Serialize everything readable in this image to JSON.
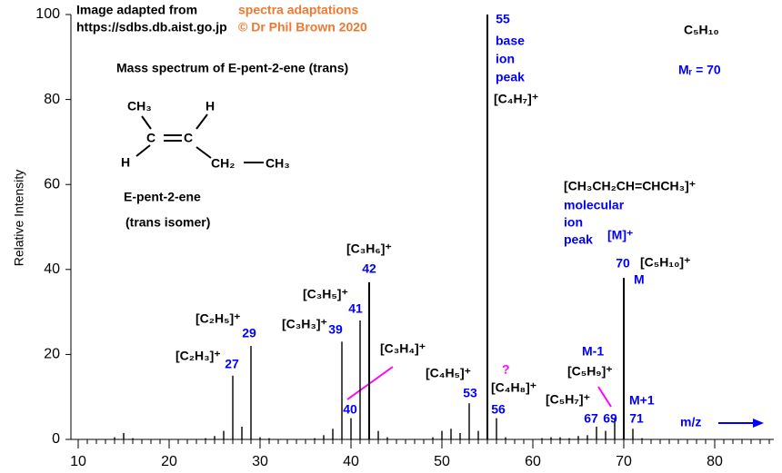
{
  "chart_data": {
    "type": "bar",
    "title": "Mass spectrum of E-pent-2-ene (trans)",
    "y_label": "Relative Intensity",
    "x_label": "m/z",
    "color": "#000000",
    "label_color": "#0000ff",
    "x": [
      14,
      15,
      16,
      24,
      25,
      26,
      27,
      28,
      29,
      30,
      31,
      36,
      37,
      38,
      39,
      40,
      41,
      42,
      43,
      44,
      49,
      50,
      51,
      52,
      53,
      54,
      55,
      56,
      57,
      61,
      62,
      63,
      64,
      65,
      66,
      67,
      68,
      69,
      70,
      71,
      72
    ],
    "values": [
      0.5,
      1.5,
      0.3,
      0.3,
      0.8,
      2,
      15,
      3,
      22,
      0.5,
      0.3,
      0.3,
      1,
      2.5,
      23,
      5,
      28,
      37,
      2,
      0.5,
      0.5,
      2,
      2.5,
      1.5,
      8.5,
      2,
      100,
      5,
      0.5,
      0.3,
      0.5,
      0.5,
      0.3,
      0.8,
      1,
      3,
      2,
      5,
      38,
      2.5,
      0.3
    ],
    "xlim": [
      9.2,
      86.5
    ],
    "xticks": [
      10,
      20,
      30,
      40,
      50,
      60,
      70,
      80
    ],
    "ylim": [
      0,
      100
    ],
    "yticks": [
      0,
      20,
      40,
      60,
      80,
      100
    ],
    "annotations": [
      {
        "text": "Image adapted from",
        "color": "#000000"
      },
      {
        "text": "https://sdbs.db.aist.go.jp",
        "color": "#000000"
      },
      {
        "text": "spectra adaptations",
        "color": "#f07830"
      },
      {
        "text": "© Dr Phil Brown 2020",
        "color": "#f07830"
      },
      {
        "text": "C₅H₁₀",
        "color": "#000000"
      },
      {
        "text": "Mᵣ = 70",
        "color": "#0000ff"
      },
      {
        "text": "base",
        "color": "#0000ff"
      },
      {
        "text": "ion",
        "color": "#0000ff"
      },
      {
        "text": "peak",
        "color": "#0000ff"
      },
      {
        "text": "[C₄H₇]⁺",
        "color": "#000000"
      },
      {
        "text": "[CH₃CH₂CH=CHCH₃]⁺",
        "color": "#000000"
      },
      {
        "text": "molecular",
        "color": "#0000ff"
      },
      {
        "text": "ion",
        "color": "#0000ff"
      },
      {
        "text": "peak",
        "color": "#0000ff"
      },
      {
        "text": "[M]⁺",
        "color": "#0000ff"
      },
      {
        "text": "[C₅H₁₀]⁺",
        "color": "#000000"
      },
      {
        "text": "M",
        "color": "#0000ff"
      },
      {
        "text": "[C₃H₆]⁺",
        "color": "#000000"
      },
      {
        "text": "[C₃H₅]⁺",
        "color": "#000000"
      },
      {
        "text": "[C₃H₃]⁺",
        "color": "#000000"
      },
      {
        "text": "[C₂H₅]⁺",
        "color": "#000000"
      },
      {
        "text": "[C₂H₃]⁺",
        "color": "#000000"
      },
      {
        "text": "[C₃H₄]⁺",
        "color": "#000000"
      },
      {
        "text": "[C₄H₅]⁺",
        "color": "#000000"
      },
      {
        "text": "?",
        "color": "#ff00ff"
      },
      {
        "text": "[C₄H₈]⁺",
        "color": "#000000"
      },
      {
        "text": "M-1",
        "color": "#0000ff"
      },
      {
        "text": "[C₅H₉]⁺",
        "color": "#000000"
      },
      {
        "text": "[C₅H₇]⁺",
        "color": "#000000"
      },
      {
        "text": "M+1",
        "color": "#0000ff"
      },
      {
        "text": "CH₃",
        "color": "#000000"
      },
      {
        "text": "C",
        "color": "#000000"
      },
      {
        "text": "C",
        "color": "#000000"
      },
      {
        "text": "H",
        "color": "#000000"
      },
      {
        "text": "H",
        "color": "#000000"
      },
      {
        "text": "CH₂",
        "color": "#000000"
      },
      {
        "text": "CH₃",
        "color": "#000000"
      },
      {
        "text": "E-pent-2-ene",
        "color": "#000000"
      },
      {
        "text": "(trans isomer)",
        "color": "#000000"
      }
    ]
  }
}
